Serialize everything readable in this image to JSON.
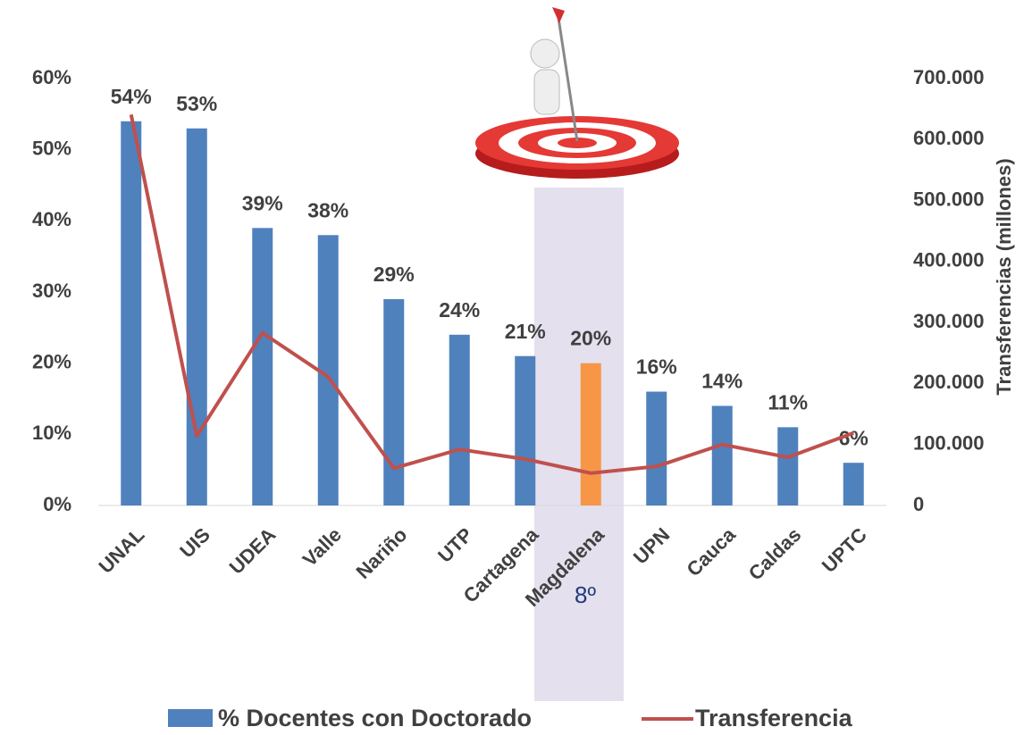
{
  "chart_data": {
    "type": "bar-line",
    "y2label": "Transferencias (millones)",
    "annotation": "8º",
    "categories": [
      "UNAL",
      "UIS",
      "UDEA",
      "Valle",
      "Nariño",
      "UTP",
      "Cartagena",
      "Magdalena",
      "UPN",
      "Cauca",
      "Caldas",
      "UPTC"
    ],
    "series": [
      {
        "name": "% Docentes con Doctorado",
        "type": "bar",
        "color": "#4f81bd",
        "colors": [
          "#4f81bd",
          "#4f81bd",
          "#4f81bd",
          "#4f81bd",
          "#4f81bd",
          "#4f81bd",
          "#4f81bd",
          "#f79646",
          "#4f81bd",
          "#4f81bd",
          "#4f81bd",
          "#4f81bd"
        ],
        "values": [
          54,
          53,
          39,
          38,
          29,
          24,
          21,
          20,
          16,
          14,
          11,
          6
        ],
        "value_labels": [
          "54%",
          "53%",
          "39%",
          "38%",
          "29%",
          "24%",
          "21%",
          "20%",
          "16%",
          "14%",
          "11%",
          "6%"
        ]
      },
      {
        "name": "Transferencia",
        "type": "line",
        "axis": "y2",
        "color": "#c0504d",
        "values": [
          641000,
          114000,
          283000,
          211000,
          61000,
          92000,
          76000,
          53000,
          64000,
          100000,
          79000,
          119000
        ]
      }
    ],
    "ylim": [
      0,
      60
    ],
    "yticks": [
      {
        "value": 0,
        "label": "0%"
      },
      {
        "value": 10,
        "label": "10%"
      },
      {
        "value": 20,
        "label": "20%"
      },
      {
        "value": 30,
        "label": "30%"
      },
      {
        "value": 40,
        "label": "40%"
      },
      {
        "value": 50,
        "label": "50%"
      },
      {
        "value": 60,
        "label": "60%"
      }
    ],
    "y2lim": [
      0,
      700000
    ],
    "y2ticks": [
      0,
      {
        "value": 100000,
        "label": "100.000"
      },
      {
        "value": 200000,
        "label": "200.000"
      },
      {
        "value": 300000,
        "label": "300.000"
      },
      {
        "value": 400000,
        "label": "400.000"
      },
      {
        "value": 500000,
        "label": "500.000"
      },
      {
        "value": 600000,
        "label": "600.000"
      },
      {
        "value": 700000,
        "label": "700.000"
      }
    ],
    "highlight_band": true
  }
}
